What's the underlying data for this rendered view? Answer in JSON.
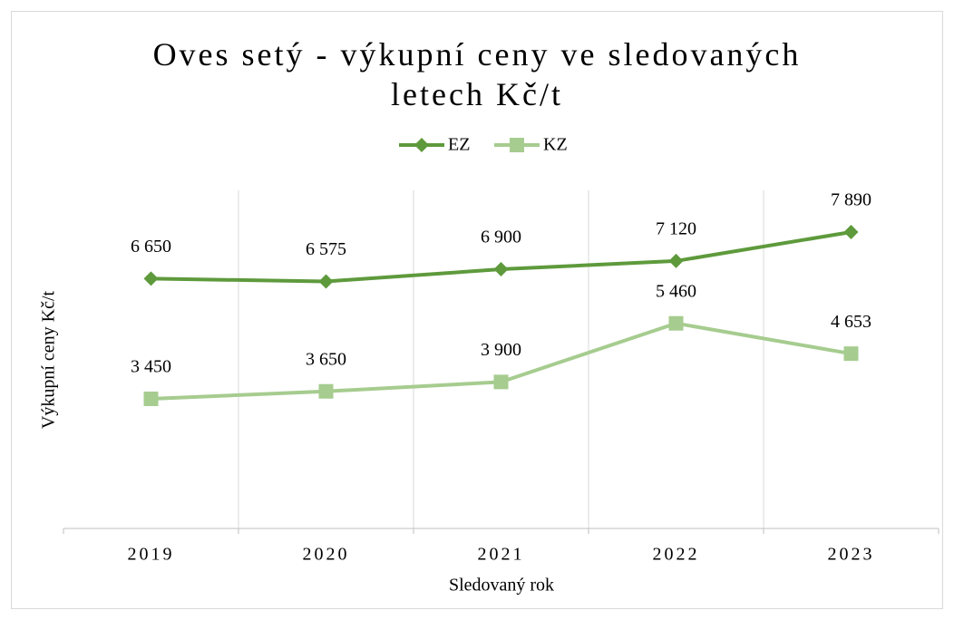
{
  "chart_data": {
    "type": "line",
    "title": "Oves setý - výkupní ceny ve sledovaných letech Kč/t",
    "x_label": "Sledovaný rok",
    "y_label": "Výkupní ceny Kč/t",
    "categories": [
      "2019",
      "2020",
      "2021",
      "2022",
      "2023"
    ],
    "series": [
      {
        "name": "EZ",
        "color": "#5e9a3c",
        "marker": "diamond",
        "values": [
          6650,
          6575,
          6900,
          7120,
          7890
        ],
        "value_labels": [
          "6 650",
          "6 575",
          "6 900",
          "7 120",
          "7 890"
        ]
      },
      {
        "name": "KZ",
        "color": "#a6cc8f",
        "marker": "square",
        "values": [
          3450,
          3650,
          3900,
          5460,
          4653
        ],
        "value_labels": [
          "3 450",
          "3 650",
          "3 900",
          "5 460",
          "4 653"
        ]
      }
    ],
    "ylim": [
      0,
      9000
    ],
    "grid": true,
    "legend": "top"
  }
}
